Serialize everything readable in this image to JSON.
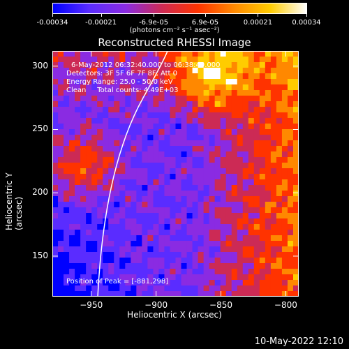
{
  "colorbar": {
    "tick_labels": [
      "-0.00034",
      "-0.00021",
      "-6.9e-05",
      "6.9e-05",
      "0.00021",
      "0.00034"
    ],
    "range": [
      -0.00034,
      0.00034
    ],
    "colors": [
      "#0000ff",
      "#5a2cff",
      "#8a2be2",
      "#cc2a55",
      "#ff3300",
      "#ff8800",
      "#ffcc00",
      "#ffffff"
    ]
  },
  "units_label": "(photons cm⁻² s⁻¹ asec⁻²)",
  "chart_data": {
    "type": "heatmap",
    "title": "Reconstructed RHESSI Image",
    "xlabel": "Heliocentric X (arcsec)",
    "ylabel": "Heliocentric Y (arcsec)",
    "xlim": [
      -980,
      -790
    ],
    "ylim": [
      118,
      312
    ],
    "x_ticks": [
      -950,
      -900,
      -850,
      -800
    ],
    "x_tick_labels": [
      "−950",
      "−900",
      "−850",
      "−800"
    ],
    "y_ticks": [
      150,
      200,
      250,
      300
    ],
    "y_tick_labels": [
      "150",
      "200",
      "250",
      "300"
    ],
    "limb_color": "#ffffff",
    "peak_position": [
      -881,
      298
    ]
  },
  "annotations": {
    "time": "6-May-2012 06:32:40.000 to 06:38:40.000",
    "detectors": "Detectors: 3F 5F 6F 7F 8F, Att 0",
    "energy": "Energy Range: 25.0 - 50.0 keV",
    "clean": "Clean     Total counts: 4.49E+03",
    "peak": "Position of Peak = [-881,298]"
  },
  "footer": "10-May-2022 12:10"
}
